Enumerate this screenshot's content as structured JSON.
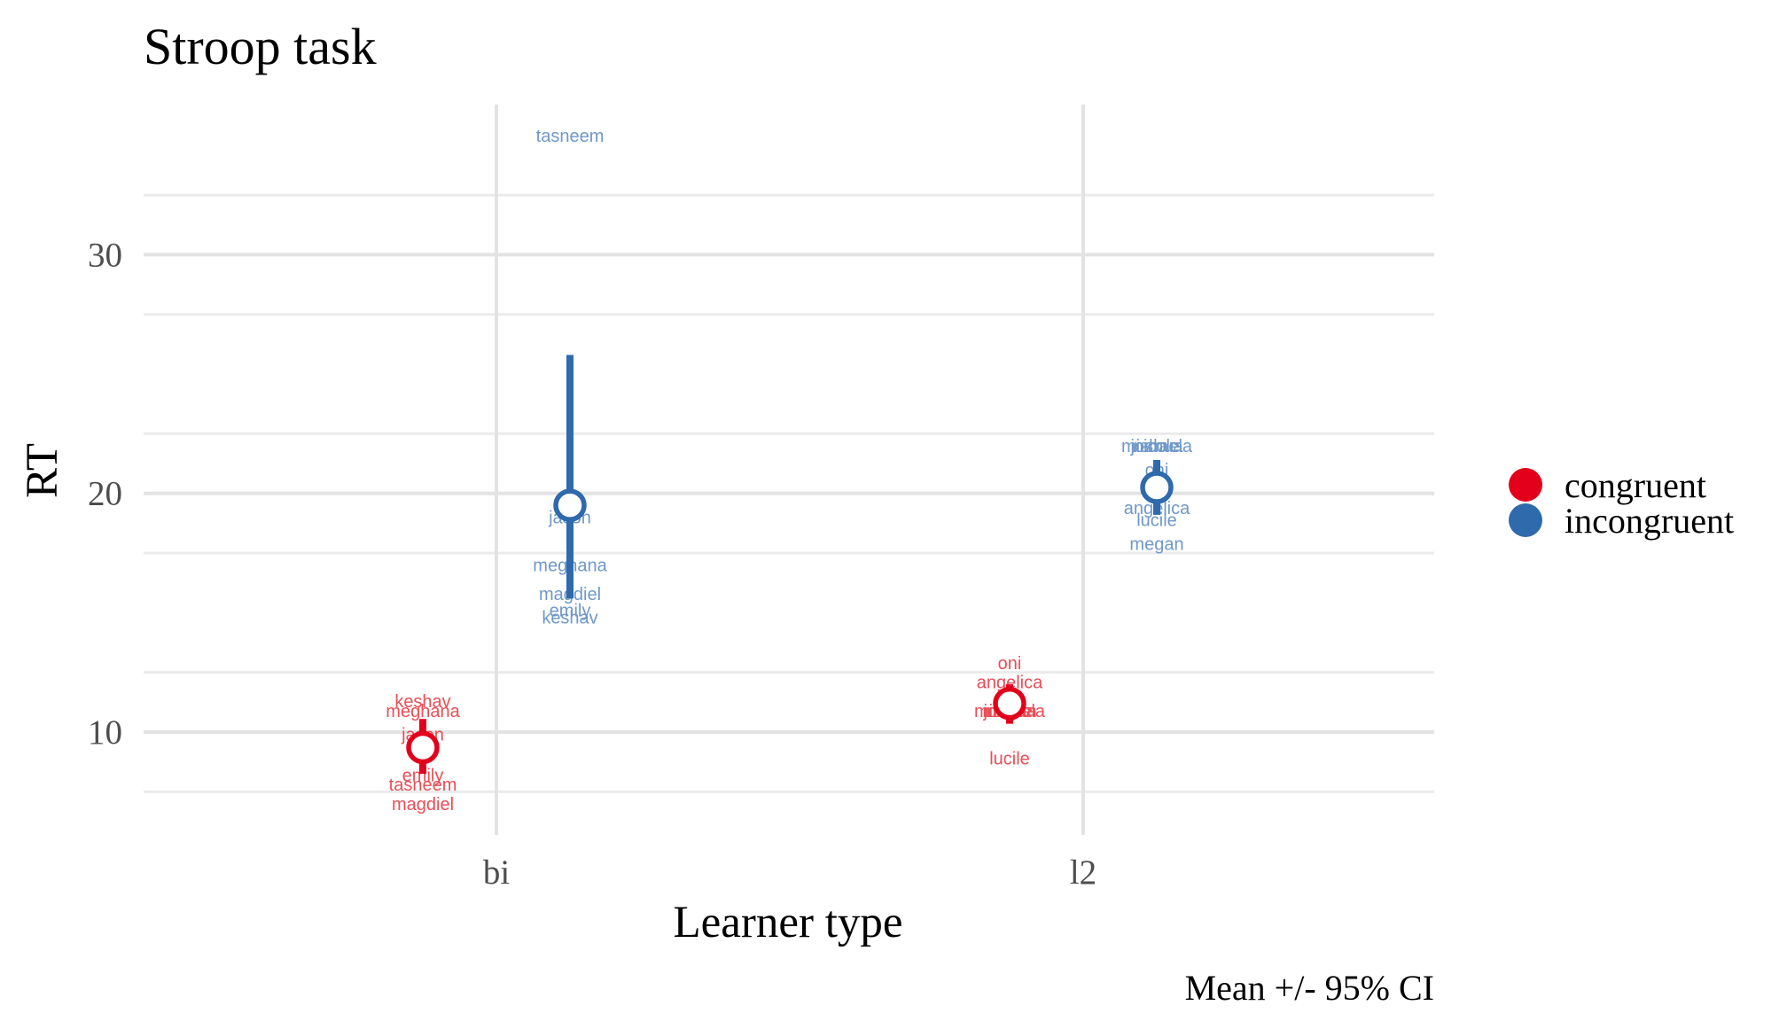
{
  "chart_data": {
    "type": "scatter",
    "title": "Stroop task",
    "xlabel": "Learner type",
    "ylabel": "RT",
    "caption": "Mean +/- 95% CI",
    "categories": [
      "bi",
      "l2"
    ],
    "yticks": [
      10,
      20,
      30
    ],
    "ylim": [
      5.5,
      35.8
    ],
    "grid": true,
    "legend_position": "right",
    "series": [
      {
        "name": "congruent",
        "color": "#e3001b",
        "label_color": "#e84f58",
        "summary": [
          {
            "category": "bi",
            "mean": 9.35,
            "ci": [
              8.25,
              10.55
            ]
          },
          {
            "category": "l2",
            "mean": 11.2,
            "ci": [
              10.35,
              12.0
            ]
          }
        ],
        "participants": [
          {
            "category": "bi",
            "name": "keshav",
            "rt": 11.3
          },
          {
            "category": "bi",
            "name": "meghana",
            "rt": 10.9
          },
          {
            "category": "bi",
            "name": "jason",
            "rt": 9.9
          },
          {
            "category": "bi",
            "name": "emily",
            "rt": 8.2
          },
          {
            "category": "bi",
            "name": "tasneem",
            "rt": 7.8
          },
          {
            "category": "bi",
            "name": "magdiel",
            "rt": 7.0
          },
          {
            "category": "l2",
            "name": "oni",
            "rt": 12.9
          },
          {
            "category": "l2",
            "name": "angelica",
            "rt": 12.1
          },
          {
            "category": "l2",
            "name": "joshua",
            "rt": 10.9
          },
          {
            "category": "l2",
            "name": "megan",
            "rt": 10.9
          },
          {
            "category": "l2",
            "name": "nicole",
            "rt": 10.9
          },
          {
            "category": "l2",
            "name": "mishaela",
            "rt": 10.9
          },
          {
            "category": "l2",
            "name": "lucile",
            "rt": 8.9
          }
        ]
      },
      {
        "name": "incongruent",
        "color": "#2e6aac",
        "label_color": "#6f98c9",
        "summary": [
          {
            "category": "bi",
            "mean": 19.5,
            "ci": [
              15.6,
              25.8
            ]
          },
          {
            "category": "l2",
            "mean": 20.25,
            "ci": [
              19.1,
              21.4
            ]
          }
        ],
        "participants": [
          {
            "category": "bi",
            "name": "tasneem",
            "rt": 35.0
          },
          {
            "category": "bi",
            "name": "jason",
            "rt": 19.0
          },
          {
            "category": "bi",
            "name": "meghana",
            "rt": 17.0
          },
          {
            "category": "bi",
            "name": "magdiel",
            "rt": 15.8
          },
          {
            "category": "bi",
            "name": "emily",
            "rt": 15.1
          },
          {
            "category": "bi",
            "name": "keshav",
            "rt": 14.8
          },
          {
            "category": "l2",
            "name": "joshua",
            "rt": 22.0
          },
          {
            "category": "l2",
            "name": "mishaela",
            "rt": 22.0
          },
          {
            "category": "l2",
            "name": "nicole",
            "rt": 22.0
          },
          {
            "category": "l2",
            "name": "oni",
            "rt": 21.0
          },
          {
            "category": "l2",
            "name": "angelica",
            "rt": 19.4
          },
          {
            "category": "l2",
            "name": "lucile",
            "rt": 18.9
          },
          {
            "category": "l2",
            "name": "megan",
            "rt": 17.9
          }
        ]
      }
    ]
  }
}
